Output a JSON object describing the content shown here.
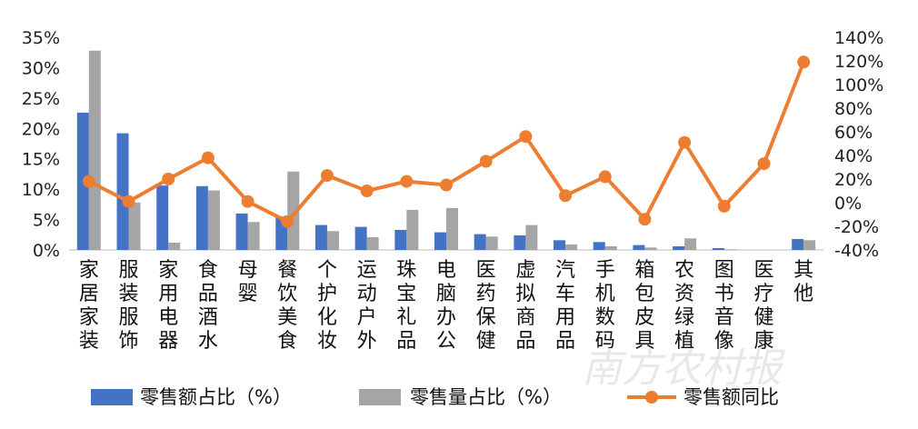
{
  "chart_data": {
    "type": "bar",
    "categories": [
      "家居家装",
      "服装服饰",
      "家用电器",
      "食品酒水",
      "母婴",
      "餐饮美食",
      "个护化妆",
      "运动户外",
      "珠宝礼品",
      "电脑办公",
      "医药保健",
      "虚拟商品",
      "汽车用品",
      "手机数码",
      "箱包皮具",
      "农资绿植",
      "图书音像",
      "医疗健康",
      "其他"
    ],
    "series": [
      {
        "name": "零售额占比（%）",
        "type": "bar",
        "axis": "left",
        "color": "#4472c4",
        "values": [
          22.6,
          19.2,
          10.6,
          10.5,
          6.0,
          5.5,
          4.1,
          3.8,
          3.3,
          2.9,
          2.6,
          2.4,
          1.6,
          1.3,
          0.8,
          0.6,
          0.3,
          0.0,
          1.8
        ]
      },
      {
        "name": "零售量占比（%）",
        "type": "bar",
        "axis": "left",
        "color": "#a5a5a5",
        "values": [
          32.8,
          7.8,
          1.2,
          9.8,
          4.6,
          12.9,
          3.1,
          2.1,
          6.6,
          6.9,
          2.2,
          4.1,
          0.9,
          0.6,
          0.4,
          1.9,
          0.1,
          0.0,
          1.6
        ]
      },
      {
        "name": "零售额同比",
        "type": "line",
        "axis": "right",
        "color": "#ed7d31",
        "values": [
          18,
          1,
          20,
          38,
          1,
          -16,
          23,
          10,
          18,
          15,
          35,
          56,
          6,
          22,
          -14,
          51,
          -3,
          33,
          119
        ]
      }
    ],
    "y_left": {
      "min": 0,
      "max": 35,
      "step": 5,
      "suffix": "%"
    },
    "y_right": {
      "min": -40,
      "max": 140,
      "step": 20,
      "suffix": "%"
    },
    "legend": "bottom",
    "grid": false
  },
  "watermark": "南方农村报"
}
